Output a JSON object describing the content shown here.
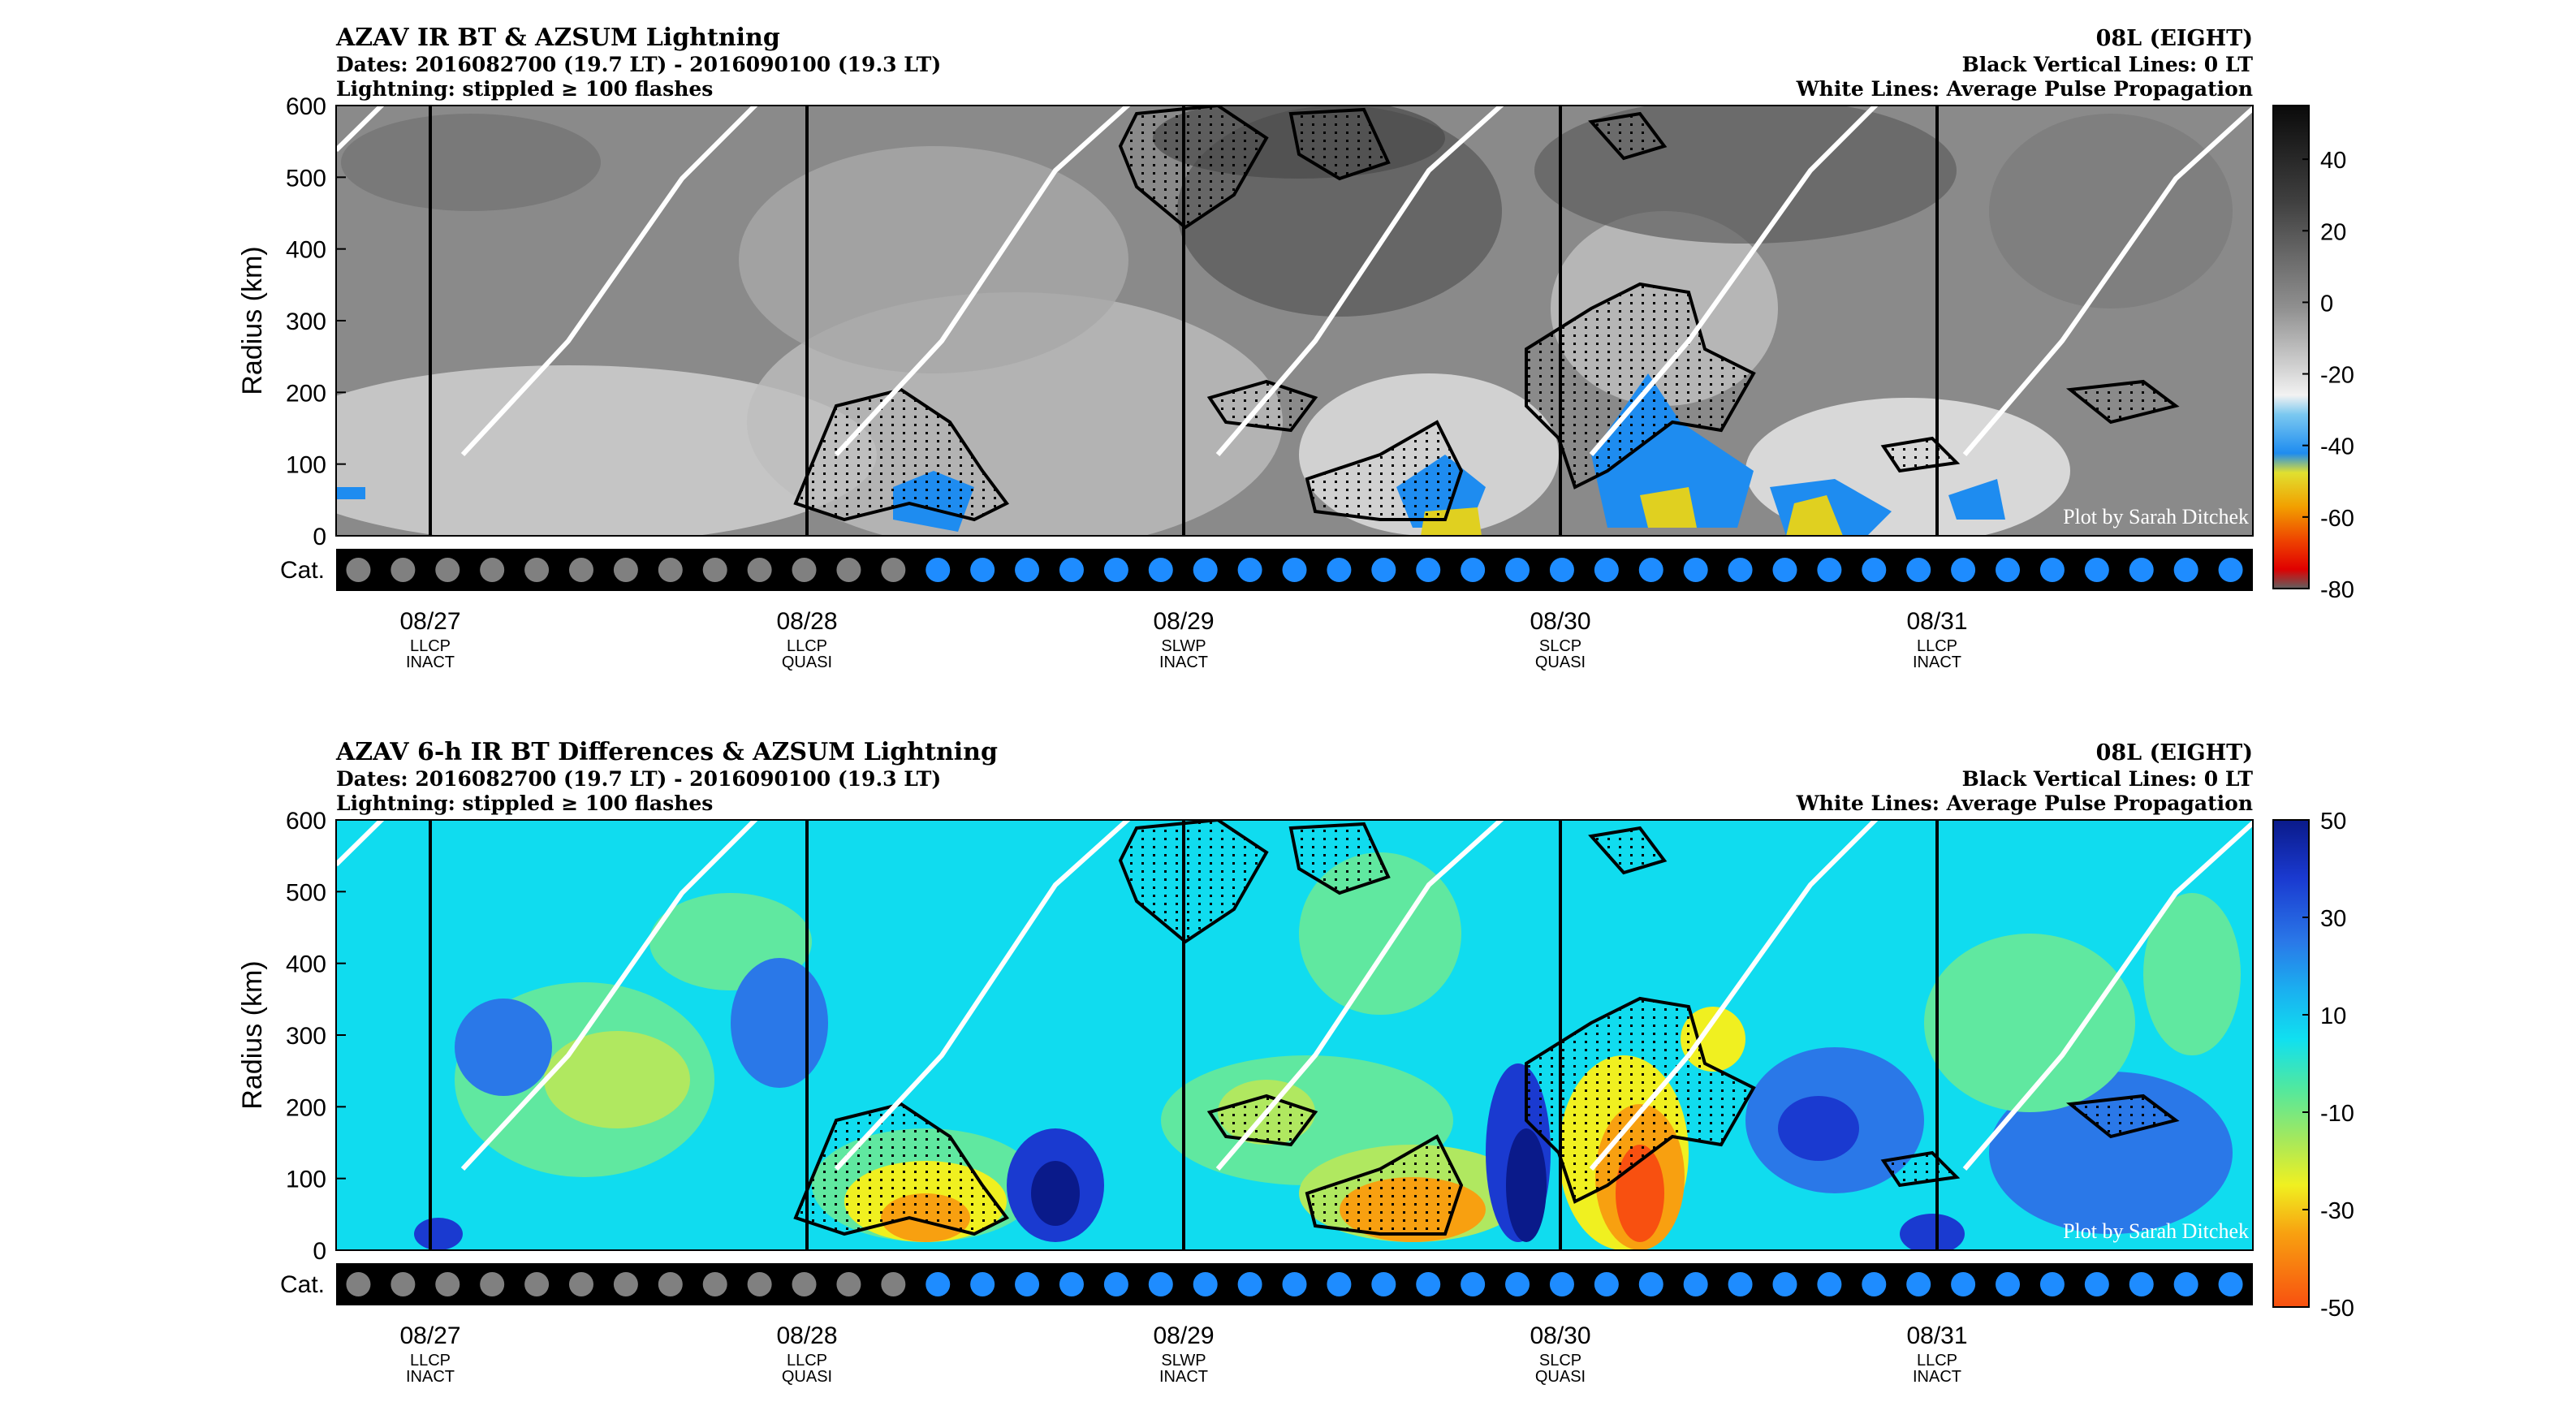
{
  "chart_data": [
    {
      "type": "heatmap",
      "title": "AZAV IR BT & AZSUM Lightning",
      "subtitle_dates": "Dates: 2016082700 (19.7 LT) - 2016090100 (19.3 LT)",
      "subtitle_lightning": "Lightning: stippled ≥ 100 flashes",
      "storm": "08L (EIGHT)",
      "note_black": "Black Vertical Lines: 0 LT",
      "note_white": "White Lines: Average Pulse Propagation",
      "watermark": "Plot by Sarah Ditchek",
      "ylabel": "Radius (km)",
      "ylim": [
        0,
        600
      ],
      "yticks": [
        "600",
        "500",
        "400",
        "300",
        "200",
        "100",
        "0"
      ],
      "cat_label": "Cat.",
      "colorbar": {
        "ticks": [
          "40",
          "20",
          "0",
          "-20",
          "-40",
          "-60",
          "-80"
        ],
        "range": [
          -80,
          55
        ]
      },
      "dates": [
        "08/27",
        "08/28",
        "08/29",
        "08/30",
        "08/31"
      ],
      "phases": [
        [
          "LLCP",
          "INACT"
        ],
        [
          "LLCP",
          "QUASI"
        ],
        [
          "SLWP",
          "INACT"
        ],
        [
          "SLCP",
          "QUASI"
        ],
        [
          "LLCP",
          "INACT"
        ]
      ],
      "category_dots": {
        "gray_count": 13,
        "blue_count": 30,
        "gray": "#808080",
        "blue": "#1e8cff"
      }
    },
    {
      "type": "heatmap",
      "title": "AZAV 6-h IR BT Differences & AZSUM Lightning",
      "subtitle_dates": "Dates: 2016082700 (19.7 LT) - 2016090100 (19.3 LT)",
      "subtitle_lightning": "Lightning: stippled ≥ 100 flashes",
      "storm": "08L (EIGHT)",
      "note_black": "Black Vertical Lines: 0 LT",
      "note_white": "White Lines: Average Pulse Propagation",
      "watermark": "Plot by Sarah Ditchek",
      "ylabel": "Radius (km)",
      "ylim": [
        0,
        600
      ],
      "yticks": [
        "600",
        "500",
        "400",
        "300",
        "200",
        "100",
        "0"
      ],
      "cat_label": "Cat.",
      "colorbar": {
        "ticks": [
          "50",
          "30",
          "10",
          "-10",
          "-30",
          "-50"
        ],
        "range": [
          -50,
          50
        ]
      },
      "dates": [
        "08/27",
        "08/28",
        "08/29",
        "08/30",
        "08/31"
      ],
      "phases": [
        [
          "LLCP",
          "INACT"
        ],
        [
          "LLCP",
          "QUASI"
        ],
        [
          "SLWP",
          "INACT"
        ],
        [
          "SLCP",
          "QUASI"
        ],
        [
          "LLCP",
          "INACT"
        ]
      ],
      "category_dots": {
        "gray_count": 13,
        "blue_count": 30,
        "gray": "#808080",
        "blue": "#1e8cff"
      }
    }
  ]
}
